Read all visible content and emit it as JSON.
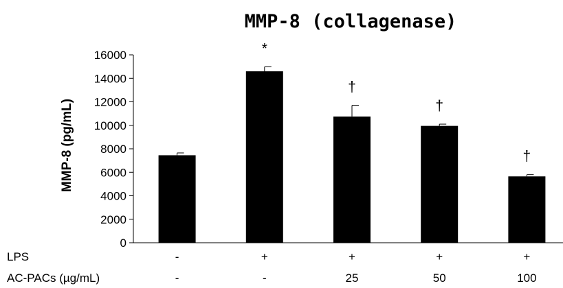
{
  "chart_data": {
    "type": "bar",
    "title": "MMP-8 (collagenase)",
    "ylabel": "MMP-8 (pg/mL)",
    "xlabel": "",
    "ylim": [
      0,
      16000
    ],
    "yticks": [
      0,
      2000,
      4000,
      6000,
      8000,
      10000,
      12000,
      14000,
      16000
    ],
    "grid": false,
    "values": [
      7450,
      14600,
      10750,
      9950,
      5650
    ],
    "errors": [
      200,
      380,
      950,
      150,
      150
    ],
    "significance": [
      "",
      "*",
      "†",
      "†",
      "†"
    ],
    "bar_color": "#000000",
    "condition_rows": [
      {
        "label": "LPS",
        "values": [
          "-",
          "+",
          "+",
          "+",
          "+"
        ]
      },
      {
        "label": "AC-PACs (µg/mL)",
        "values": [
          "-",
          "-",
          "25",
          "50",
          "100"
        ]
      }
    ]
  }
}
